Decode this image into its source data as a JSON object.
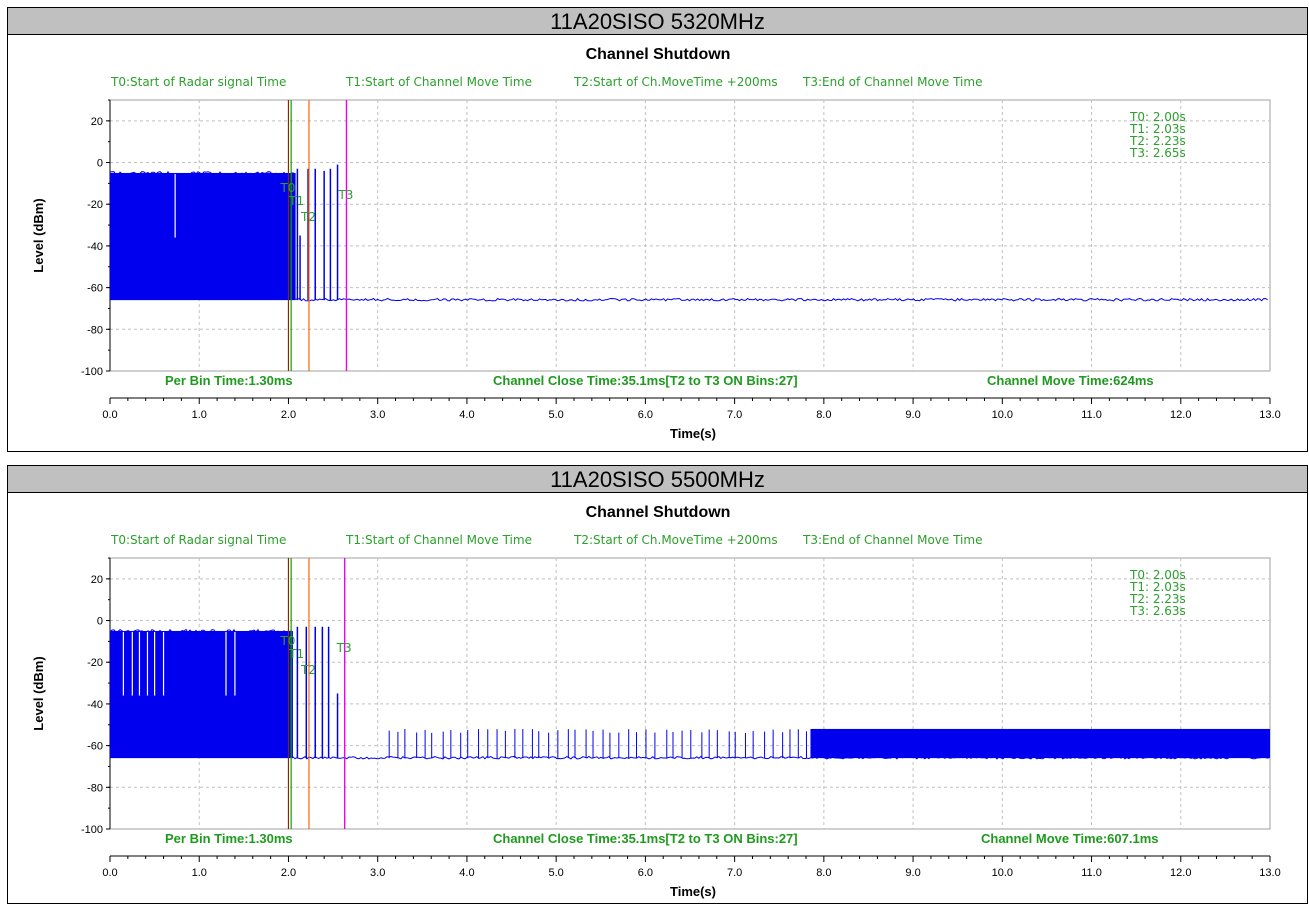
{
  "colors": {
    "trace": "#0000ee",
    "t0_line": "#8b2500",
    "t1_line": "#00aa00",
    "t2_line": "#ff6600",
    "t3_line": "#ee00ee",
    "label_green": "#2ca02c",
    "grid": "#c0c0c0"
  },
  "chart_data": [
    {
      "type": "line",
      "header": "11A20SISO 5320MHz",
      "title": "Channel Shutdown",
      "xlabel": "Time(s)",
      "ylabel": "Level (dBm)",
      "xlim": [
        0,
        13
      ],
      "ylim": [
        -100,
        30
      ],
      "xticks": [
        "0.0",
        "1.0",
        "2.0",
        "3.0",
        "4.0",
        "5.0",
        "6.0",
        "7.0",
        "8.0",
        "9.0",
        "10.0",
        "11.0",
        "12.0",
        "13.0"
      ],
      "yticks": [
        "20",
        "0",
        "-20",
        "-40",
        "-60",
        "-80",
        "-100"
      ],
      "grid": true,
      "legend": [
        "T0:Start of Radar signal Time",
        "T1:Start of Channel Move Time",
        "T2:Start of Ch.MoveTime +200ms",
        "T3:End of Channel Move Time"
      ],
      "markers": [
        {
          "name": "T0",
          "x": 2.0
        },
        {
          "name": "T1",
          "x": 2.03
        },
        {
          "name": "T2",
          "x": 2.23
        },
        {
          "name": "T3",
          "x": 2.65
        }
      ],
      "marker_values": [
        "T0: 2.00s",
        "T1: 2.03s",
        "T2: 2.23s",
        "T3: 2.65s"
      ],
      "info": {
        "per_bin": "Per Bin Time:1.30ms",
        "close_time": "Channel Close Time:35.1ms[T2 to T3 ON Bins:27]",
        "move_time": "Channel Move Time:624ms"
      },
      "trace": {
        "noise_floor": -66,
        "dense_band": {
          "x_start": 0.0,
          "x_end": 2.08,
          "top": -5,
          "bottom": -66
        },
        "dense_dropouts": [
          {
            "x": 0.73,
            "y": -36
          }
        ],
        "pulses": [
          {
            "x": 2.1,
            "y": -3
          },
          {
            "x": 2.13,
            "y": -35
          },
          {
            "x": 2.22,
            "y": -3
          },
          {
            "x": 2.3,
            "y": -3
          },
          {
            "x": 2.4,
            "y": -4
          },
          {
            "x": 2.47,
            "y": -3
          },
          {
            "x": 2.55,
            "y": -1
          }
        ],
        "elevated": null
      }
    },
    {
      "type": "line",
      "header": "11A20SISO 5500MHz",
      "title": "Channel Shutdown",
      "xlabel": "Time(s)",
      "ylabel": "Level (dBm)",
      "xlim": [
        0,
        13
      ],
      "ylim": [
        -100,
        30
      ],
      "xticks": [
        "0.0",
        "1.0",
        "2.0",
        "3.0",
        "4.0",
        "5.0",
        "6.0",
        "7.0",
        "8.0",
        "9.0",
        "10.0",
        "11.0",
        "12.0",
        "13.0"
      ],
      "yticks": [
        "20",
        "0",
        "-20",
        "-40",
        "-60",
        "-80",
        "-100"
      ],
      "grid": true,
      "legend": [
        "T0:Start of Radar signal Time",
        "T1:Start of Channel Move Time",
        "T2:Start of Ch.MoveTime +200ms",
        "T3:End of Channel Move Time"
      ],
      "markers": [
        {
          "name": "T0",
          "x": 2.0
        },
        {
          "name": "T1",
          "x": 2.03
        },
        {
          "name": "T2",
          "x": 2.23
        },
        {
          "name": "T3",
          "x": 2.63
        }
      ],
      "marker_values": [
        "T0: 2.00s",
        "T1: 2.03s",
        "T2: 2.23s",
        "T3: 2.63s"
      ],
      "info": {
        "per_bin": "Per Bin Time:1.30ms",
        "close_time": "Channel Close Time:35.1ms[T2 to T3 ON Bins:27]",
        "move_time": "Channel Move Time:607.1ms"
      },
      "trace": {
        "noise_floor": -66,
        "dense_band": {
          "x_start": 0.0,
          "x_end": 2.05,
          "top": -5,
          "bottom": -66
        },
        "dense_dropouts": [
          {
            "x": 0.15,
            "y": -36
          },
          {
            "x": 0.25,
            "y": -36
          },
          {
            "x": 0.33,
            "y": -36
          },
          {
            "x": 0.42,
            "y": -36
          },
          {
            "x": 0.5,
            "y": -36
          },
          {
            "x": 0.6,
            "y": -36
          },
          {
            "x": 1.3,
            "y": -36
          },
          {
            "x": 1.4,
            "y": -36
          }
        ],
        "pulses": [
          {
            "x": 2.1,
            "y": -3
          },
          {
            "x": 2.2,
            "y": -3
          },
          {
            "x": 2.3,
            "y": -3
          },
          {
            "x": 2.38,
            "y": -3
          },
          {
            "x": 2.45,
            "y": -3
          },
          {
            "x": 2.55,
            "y": -35
          }
        ],
        "elevated": {
          "burst_x_start": 3.1,
          "burst_x_end": 7.85,
          "burst_top": -52,
          "band_x_start": 7.85,
          "band_x_end": 13.0,
          "band_top": -52,
          "band_bottom": -66
        }
      }
    }
  ]
}
